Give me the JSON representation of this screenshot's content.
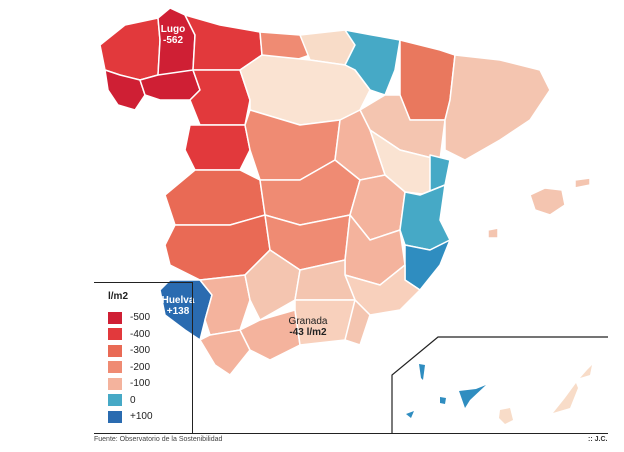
{
  "map": {
    "labels": {
      "lugo": {
        "name": "Lugo",
        "value": "-562"
      },
      "huelva": {
        "name": "Huelva",
        "value": "+138"
      },
      "granada": {
        "name": "Granada",
        "value": "-43 l/m2"
      }
    }
  },
  "legend": {
    "title": "l/m2",
    "items": [
      {
        "label": "-500",
        "color": "#cf1f34"
      },
      {
        "label": "-400",
        "color": "#e2393c"
      },
      {
        "label": "-300",
        "color": "#e96a55"
      },
      {
        "label": "-200",
        "color": "#ef8b73"
      },
      {
        "label": "-100",
        "color": "#f4b39d"
      },
      {
        "label": "0",
        "color": "#46a9c6"
      },
      {
        "label": "+100",
        "color": "#2a6bb0"
      }
    ]
  },
  "footer": {
    "source": "Fuente: Observatorio de la Sostenibilidad",
    "credit": ":: J.C."
  }
}
